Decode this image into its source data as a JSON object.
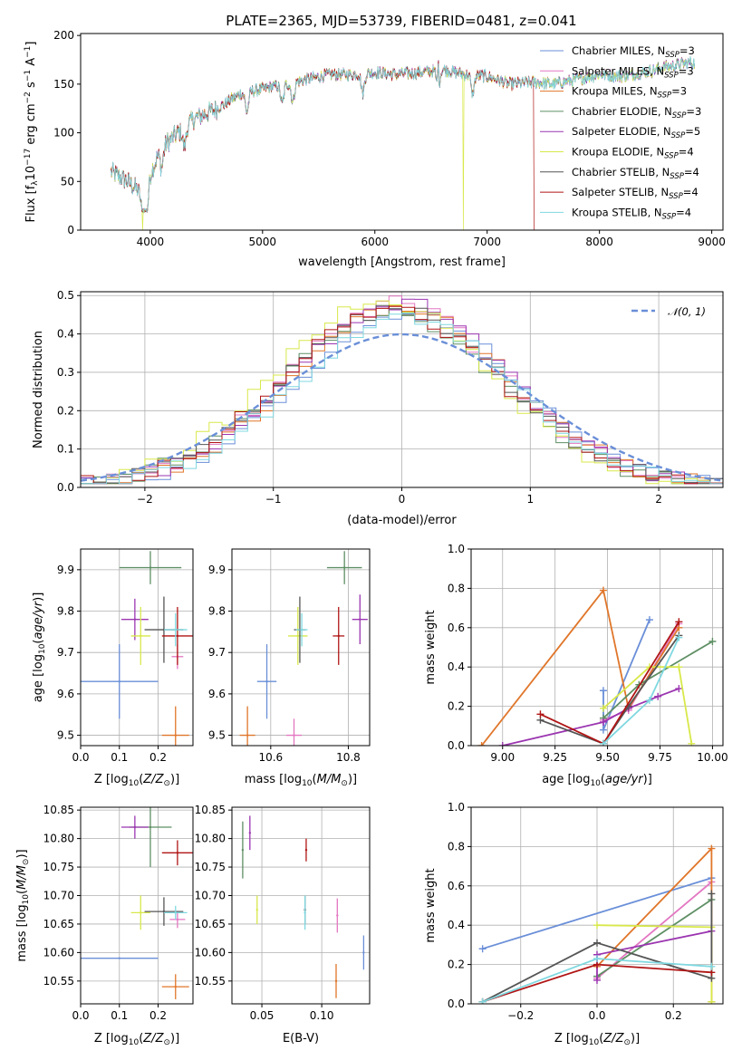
{
  "colors": [
    "#6a8fd8",
    "#e377c2",
    "#e0762a",
    "#5e8f64",
    "#9b35b0",
    "#d8e84a",
    "#555555",
    "#b01515",
    "#7fd8e0"
  ],
  "series_names": [
    "Chabrier MILES, N_SSP=3",
    "Salpeter MILES, N_SSP=3",
    "Kroupa MILES, N_SSP=3",
    "Chabrier ELODIE, N_SSP=3",
    "Salpeter ELODIE, N_SSP=5",
    "Kroupa ELODIE, N_SSP=4",
    "Chabrier STELIB, N_SSP=4",
    "Salpeter STELIB, N_SSP=4",
    "Kroupa STELIB, N_SSP=4"
  ],
  "legend": [
    {
      "pre": "Chabrier MILES, N",
      "sub": "SSP",
      "post": "=3"
    },
    {
      "pre": "Salpeter MILES, N",
      "sub": "SSP",
      "post": "=3"
    },
    {
      "pre": "Kroupa MILES, N",
      "sub": "SSP",
      "post": "=3"
    },
    {
      "pre": "Chabrier ELODIE, N",
      "sub": "SSP",
      "post": "=3"
    },
    {
      "pre": "Salpeter ELODIE, N",
      "sub": "SSP",
      "post": "=5"
    },
    {
      "pre": "Kroupa ELODIE, N",
      "sub": "SSP",
      "post": "=4"
    },
    {
      "pre": "Chabrier STELIB, N",
      "sub": "SSP",
      "post": "=4"
    },
    {
      "pre": "Salpeter STELIB, N",
      "sub": "SSP",
      "post": "=4"
    },
    {
      "pre": "Kroupa STELIB, N",
      "sub": "SSP",
      "post": "=4"
    }
  ],
  "chart_data": [
    {
      "type": "line",
      "title": "PLATE=2365, MJD=53739, FIBERID=0481, z=0.041",
      "xlabel": "wavelength [Angstrom, rest frame]",
      "ylabel": "Flux [fλ10^-17 erg cm^-2 s^-1 A^-1]",
      "xlim": [
        3380,
        9100
      ],
      "ylim": [
        0,
        202
      ],
      "xticks": [
        4000,
        5000,
        6000,
        7000,
        8000,
        9000
      ],
      "yticks": [
        0,
        50,
        100,
        150,
        200
      ],
      "legend_position": "upper right",
      "continuum": {
        "x": [
          3650,
          3800,
          3900,
          4000,
          4100,
          4200,
          4400,
          4600,
          4800,
          5000,
          5200,
          5400,
          5600,
          5800,
          6000,
          6200,
          6400,
          6600,
          6800,
          7000,
          7200,
          7400,
          7600,
          7800,
          8000,
          8200,
          8400,
          8600,
          8800
        ],
        "y": [
          60,
          50,
          40,
          58,
          85,
          95,
          115,
          125,
          140,
          145,
          150,
          155,
          160,
          160,
          162,
          160,
          162,
          165,
          160,
          158,
          150,
          152,
          150,
          155,
          160,
          158,
          162,
          168,
          172
        ]
      },
      "absorption_lines": [
        3934,
        3969,
        4102,
        4304,
        4861,
        5175,
        5270,
        5893,
        6563,
        6870
      ],
      "dropouts": [
        {
          "series": 5,
          "at": 3930
        },
        {
          "series": 5,
          "at": 6790
        },
        {
          "series": 7,
          "at": 7420
        }
      ]
    },
    {
      "type": "histogram",
      "xlabel": "(data-model)/error",
      "ylabel": "Normed distribution",
      "xlim": [
        -2.5,
        2.5
      ],
      "ylim": [
        0,
        0.51
      ],
      "xticks": [
        -2,
        -1,
        0,
        1,
        2
      ],
      "yticks": [
        0.0,
        0.1,
        0.2,
        0.3,
        0.4,
        0.5
      ],
      "bin_width": 0.1,
      "reference_curve": {
        "name": "N(0,1)",
        "mean": 0,
        "sigma": 1
      }
    },
    {
      "type": "errorbar",
      "xlabel": "Z [log10(Z/Z☉)]",
      "ylabel": "age [log10(age/yr)]",
      "xlim": [
        0,
        0.29
      ],
      "ylim": [
        9.475,
        9.95
      ],
      "xticks": [
        0.0,
        0.1,
        0.2
      ],
      "yticks": [
        9.5,
        9.6,
        9.7,
        9.8,
        9.9
      ],
      "points": [
        {
          "x": 0.1,
          "xerr": 0.1,
          "y": 9.63,
          "yerr": 0.09
        },
        {
          "x": 0.25,
          "xerr": 0.015,
          "y": 9.69,
          "yerr": 0.03
        },
        {
          "x": 0.245,
          "xerr": 0.035,
          "y": 9.5,
          "yerr": 0.07
        },
        {
          "x": 0.18,
          "xerr": 0.08,
          "y": 9.905,
          "yerr": 0.04
        },
        {
          "x": 0.14,
          "xerr": 0.035,
          "y": 9.78,
          "yerr": 0.05
        },
        {
          "x": 0.155,
          "xerr": 0.025,
          "y": 9.74,
          "yerr": 0.07
        },
        {
          "x": 0.215,
          "xerr": 0.05,
          "y": 9.755,
          "yerr": 0.08
        },
        {
          "x": 0.25,
          "xerr": 0.04,
          "y": 9.74,
          "yerr": 0.07
        },
        {
          "x": 0.245,
          "xerr": 0.03,
          "y": 9.755,
          "yerr": 0.04
        }
      ]
    },
    {
      "type": "errorbar",
      "xlabel": "mass [log10(M/M☉)]",
      "ylabel": "",
      "xlim": [
        10.5,
        10.855
      ],
      "ylim": [
        9.475,
        9.95
      ],
      "xticks": [
        10.6,
        10.8
      ],
      "yticks": [
        9.5,
        9.6,
        9.7,
        9.8,
        9.9
      ],
      "points": [
        {
          "x": 10.59,
          "xerr": 0.025,
          "y": 9.63,
          "yerr": 0.09
        },
        {
          "x": 10.66,
          "xerr": 0.02,
          "y": 9.5,
          "yerr": 0.04
        },
        {
          "x": 10.54,
          "xerr": 0.02,
          "y": 9.5,
          "yerr": 0.07
        },
        {
          "x": 10.79,
          "xerr": 0.045,
          "y": 9.905,
          "yerr": 0.04
        },
        {
          "x": 10.83,
          "xerr": 0.02,
          "y": 9.78,
          "yerr": 0.06
        },
        {
          "x": 10.67,
          "xerr": 0.025,
          "y": 9.74,
          "yerr": 0.07
        },
        {
          "x": 10.675,
          "xerr": 0.015,
          "y": 9.755,
          "yerr": 0.08
        },
        {
          "x": 10.775,
          "xerr": 0.015,
          "y": 9.74,
          "yerr": 0.07
        },
        {
          "x": 10.68,
          "xerr": 0.015,
          "y": 9.755,
          "yerr": 0.04
        }
      ]
    },
    {
      "type": "line",
      "xlabel": "age [log10(age/yr)]",
      "ylabel": "mass weight",
      "xlim": [
        8.85,
        10.05
      ],
      "ylim": [
        0,
        1
      ],
      "xticks": [
        9.0,
        9.25,
        9.5,
        9.75,
        10.0
      ],
      "yticks": [
        0,
        0.2,
        0.4,
        0.6,
        0.8,
        1.0
      ],
      "series": [
        {
          "x": [
            9.48,
            9.48,
            9.7
          ],
          "y": [
            0.28,
            0.08,
            0.64
          ]
        },
        {
          "x": [
            9.48,
            9.6,
            9.84
          ],
          "y": [
            0.13,
            0.18,
            0.62
          ]
        },
        {
          "x": [
            8.9,
            9.48,
            9.6,
            9.84
          ],
          "y": [
            0.0,
            0.79,
            0.19,
            0.6
          ]
        },
        {
          "x": [
            9.48,
            9.65,
            10.0
          ],
          "y": [
            0.14,
            0.31,
            0.53
          ]
        },
        {
          "x": [
            9.0,
            9.48,
            9.6,
            9.74,
            9.84
          ],
          "y": [
            0.0,
            0.12,
            0.19,
            0.25,
            0.29
          ]
        },
        {
          "x": [
            9.48,
            9.7,
            9.84,
            9.9
          ],
          "y": [
            0.19,
            0.4,
            0.4,
            0.01
          ]
        },
        {
          "x": [
            9.18,
            9.48,
            9.6,
            9.84
          ],
          "y": [
            0.13,
            0.01,
            0.2,
            0.56
          ]
        },
        {
          "x": [
            9.18,
            9.48,
            9.84
          ],
          "y": [
            0.16,
            0.01,
            0.63
          ]
        },
        {
          "x": [
            9.48,
            9.7,
            9.84
          ],
          "y": [
            0.01,
            0.23,
            0.55
          ]
        }
      ]
    },
    {
      "type": "errorbar",
      "xlabel": "Z [log10(Z/Z☉)]",
      "ylabel": "mass [log10(M/M☉)]",
      "xlim": [
        0,
        0.29
      ],
      "ylim": [
        10.51,
        10.855
      ],
      "xticks": [
        0.0,
        0.1,
        0.2
      ],
      "yticks": [
        10.55,
        10.6,
        10.65,
        10.7,
        10.75,
        10.8,
        10.85
      ],
      "points": [
        {
          "x": 0.1,
          "xerr": 0.1,
          "y": 10.59,
          "yerr": 0.0
        },
        {
          "x": 0.25,
          "xerr": 0.02,
          "y": 10.658,
          "yerr": 0.015
        },
        {
          "x": 0.245,
          "xerr": 0.035,
          "y": 10.54,
          "yerr": 0.022
        },
        {
          "x": 0.18,
          "xerr": 0.055,
          "y": 10.82,
          "yerr": 0.07
        },
        {
          "x": 0.14,
          "xerr": 0.035,
          "y": 10.82,
          "yerr": 0.02
        },
        {
          "x": 0.155,
          "xerr": 0.025,
          "y": 10.67,
          "yerr": 0.03
        },
        {
          "x": 0.215,
          "xerr": 0.05,
          "y": 10.672,
          "yerr": 0.025
        },
        {
          "x": 0.25,
          "xerr": 0.04,
          "y": 10.775,
          "yerr": 0.022
        },
        {
          "x": 0.245,
          "xerr": 0.03,
          "y": 10.67,
          "yerr": 0.012
        }
      ]
    },
    {
      "type": "errorbar",
      "xlabel": "E(B-V)",
      "ylabel": "",
      "xlim": [
        0.025,
        0.14
      ],
      "ylim": [
        10.51,
        10.855
      ],
      "xticks": [
        0.05,
        0.1
      ],
      "yticks": [
        10.55,
        10.6,
        10.65,
        10.7,
        10.75,
        10.8,
        10.85
      ],
      "points": [
        {
          "x": 0.135,
          "xerr": 0.0,
          "y": 10.6,
          "yerr": 0.03
        },
        {
          "x": 0.113,
          "xerr": 0.0,
          "y": 10.665,
          "yerr": 0.03
        },
        {
          "x": 0.112,
          "xerr": 0.0,
          "y": 10.55,
          "yerr": 0.03
        },
        {
          "x": 0.034,
          "xerr": 0.0,
          "y": 10.78,
          "yerr": 0.05
        },
        {
          "x": 0.04,
          "xerr": 0.0,
          "y": 10.81,
          "yerr": 0.03
        },
        {
          "x": 0.046,
          "xerr": 0.0,
          "y": 10.675,
          "yerr": 0.025
        },
        {
          "x": 0.086,
          "xerr": 0.0,
          "y": 10.675,
          "yerr": 0.025
        },
        {
          "x": 0.087,
          "xerr": 0.0,
          "y": 10.78,
          "yerr": 0.02
        },
        {
          "x": 0.086,
          "xerr": 0.0,
          "y": 10.67,
          "yerr": 0.03
        }
      ]
    },
    {
      "type": "line",
      "xlabel": "Z [log10(Z/Z☉)]",
      "ylabel": "mass weight",
      "xlim": [
        -0.33,
        0.33
      ],
      "ylim": [
        0,
        1
      ],
      "xticks": [
        -0.2,
        0.0,
        0.2
      ],
      "yticks": [
        0,
        0.2,
        0.4,
        0.6,
        0.8,
        1.0
      ],
      "series": [
        {
          "x": [
            -0.3,
            0.3
          ],
          "y": [
            0.28,
            0.64
          ]
        },
        {
          "x": [
            0.0,
            0.3
          ],
          "y": [
            0.13,
            0.62
          ]
        },
        {
          "x": [
            0.0,
            0.3,
            0.3
          ],
          "y": [
            0.19,
            0.79,
            0.01
          ]
        },
        {
          "x": [
            0.0,
            0.3
          ],
          "y": [
            0.14,
            0.53
          ]
        },
        {
          "x": [
            0.0,
            0.0,
            0.3
          ],
          "y": [
            0.12,
            0.25,
            0.37
          ]
        },
        {
          "x": [
            0.0,
            0.3,
            0.3
          ],
          "y": [
            0.4,
            0.39,
            0.01
          ]
        },
        {
          "x": [
            -0.3,
            0.0,
            0.3,
            0.3
          ],
          "y": [
            0.01,
            0.31,
            0.13,
            0.56
          ]
        },
        {
          "x": [
            -0.3,
            0.0,
            0.3
          ],
          "y": [
            0.01,
            0.2,
            0.16
          ]
        },
        {
          "x": [
            -0.3,
            0.0,
            0.3
          ],
          "y": [
            0.01,
            0.23,
            0.19
          ]
        }
      ]
    }
  ]
}
